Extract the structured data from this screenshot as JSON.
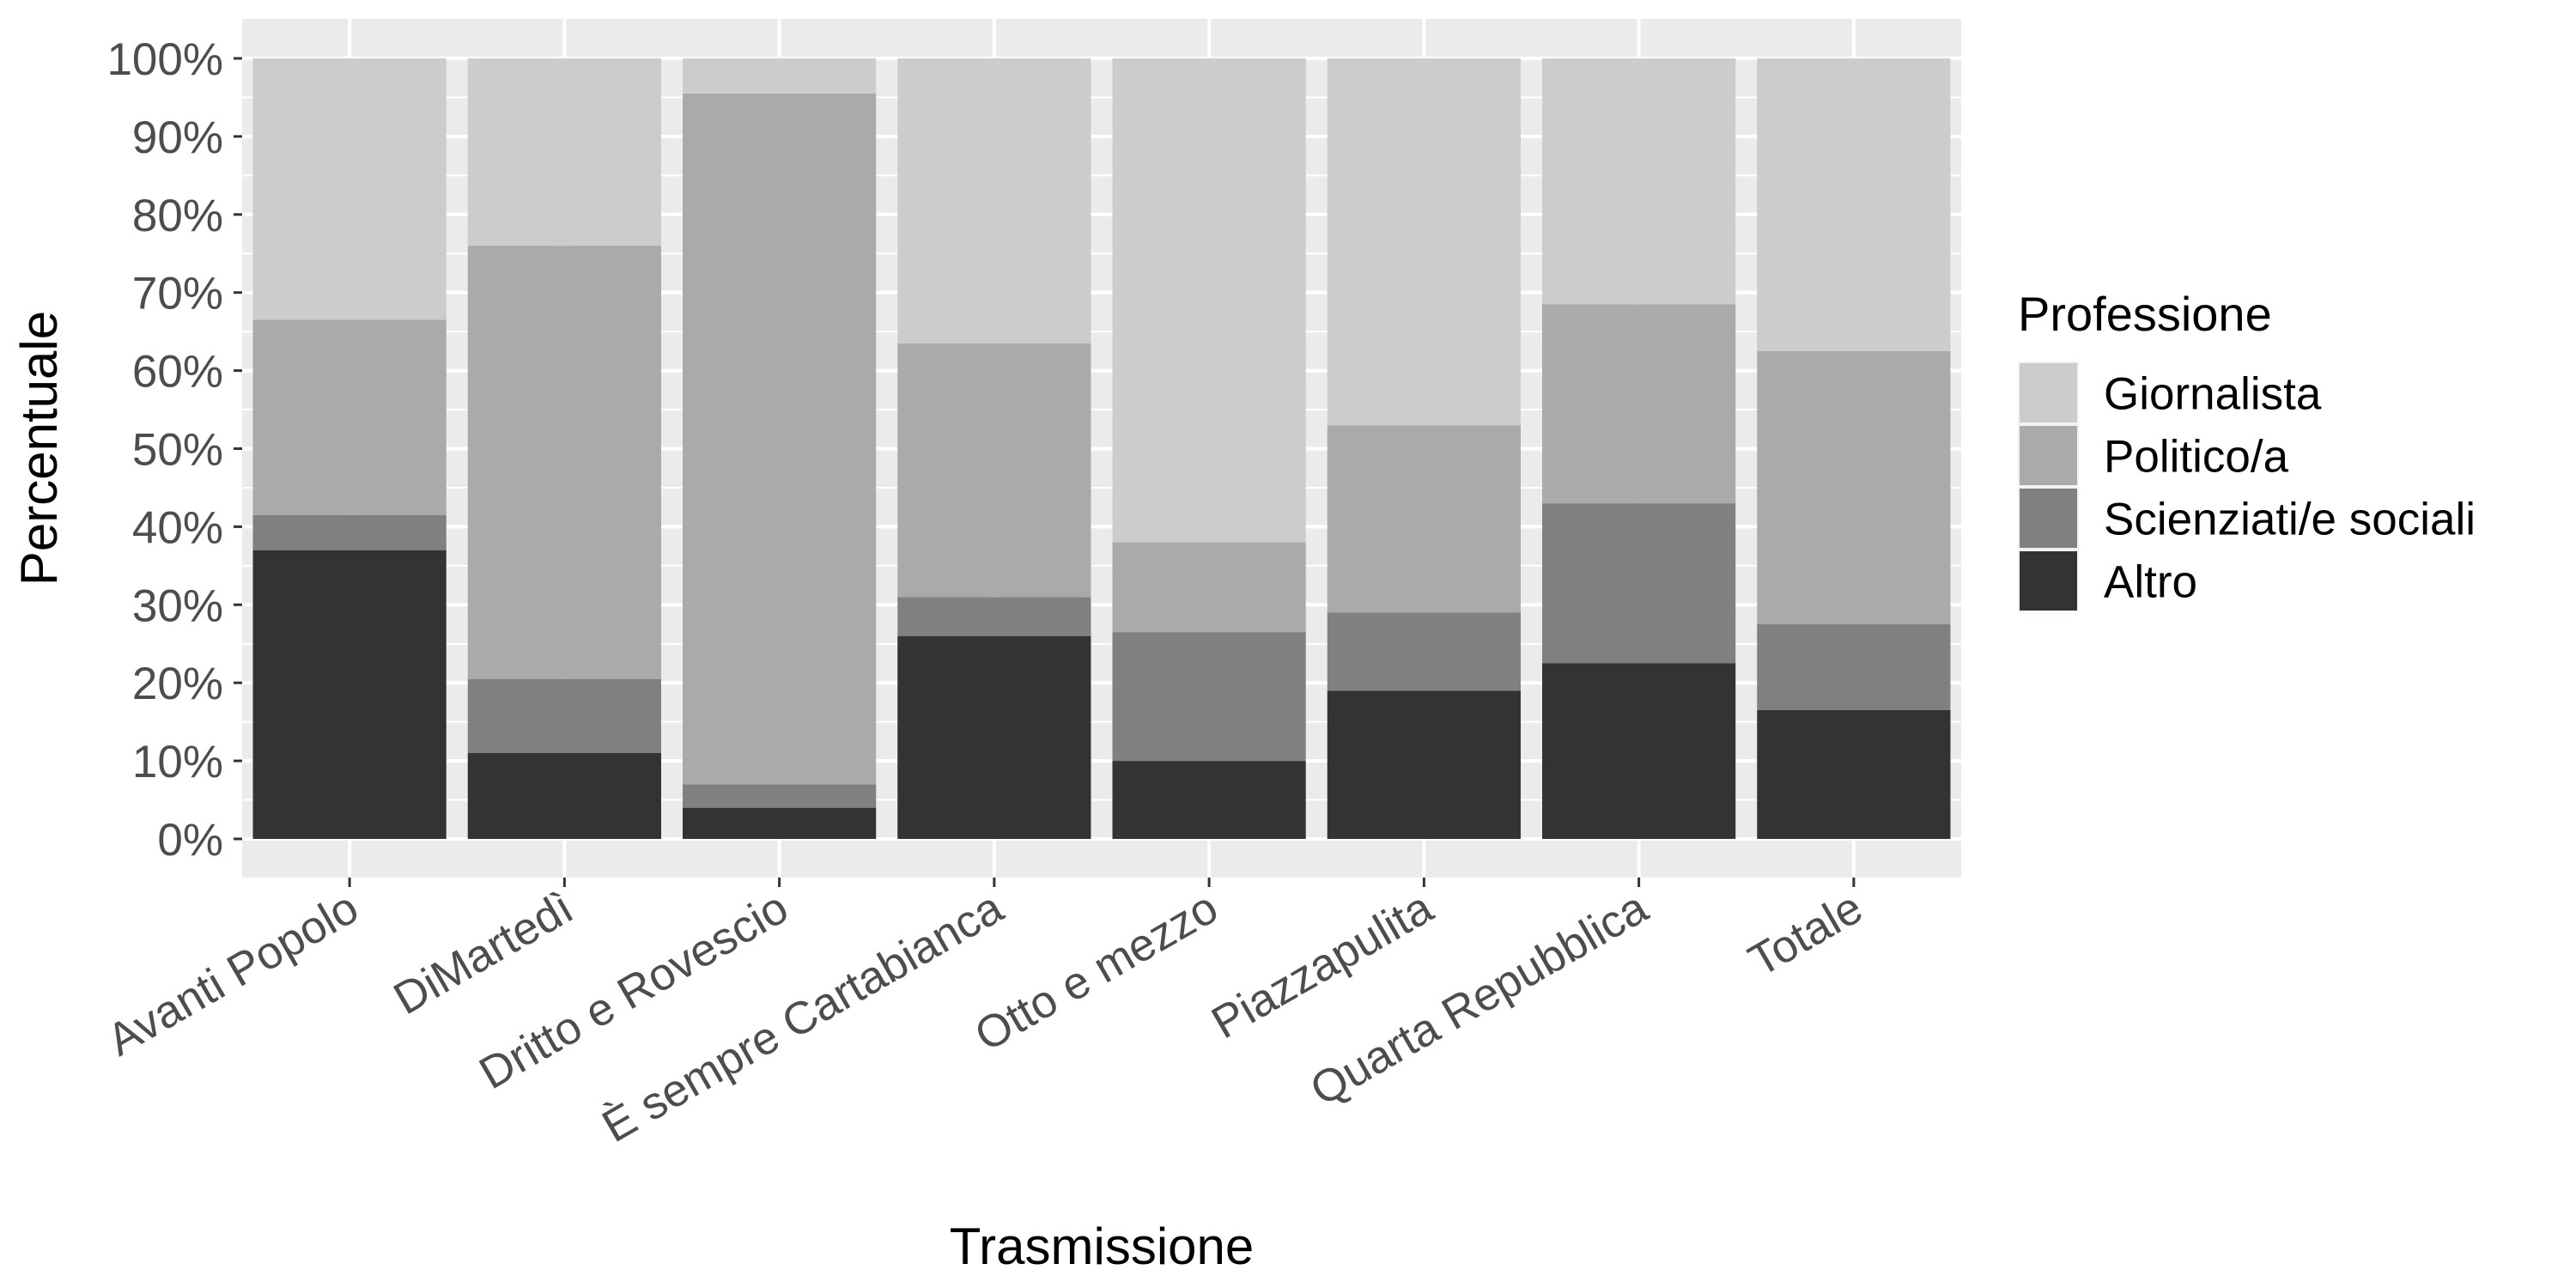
{
  "chart_data": {
    "type": "bar",
    "stacked": true,
    "percent": true,
    "categories": [
      "Avanti Popolo",
      "DiMartedì",
      "Dritto e Rovescio",
      "È sempre Cartabianca",
      "Otto e mezzo",
      "Piazzapulita",
      "Quarta Repubblica",
      "Totale"
    ],
    "series": [
      {
        "name": "Altro",
        "color": "#333333",
        "values": [
          37,
          11,
          4,
          26,
          10,
          19,
          22.5,
          16.5
        ]
      },
      {
        "name": "Scienziati/e sociali",
        "color": "#808080",
        "values": [
          4.5,
          9.5,
          3,
          5,
          16.5,
          10,
          20.5,
          11
        ]
      },
      {
        "name": "Politico/a",
        "color": "#aaaaaa",
        "values": [
          25,
          55.5,
          88.5,
          32.5,
          11.5,
          24,
          25.5,
          35
        ]
      },
      {
        "name": "Giornalista",
        "color": "#cccccc",
        "values": [
          33.5,
          24,
          4.5,
          36.5,
          62,
          47,
          31.5,
          37.5
        ]
      }
    ],
    "xlabel": "Trasmissione",
    "ylabel": "Percentuale",
    "ylim": [
      0,
      100
    ],
    "yticks": [
      "0%",
      "10%",
      "20%",
      "30%",
      "40%",
      "50%",
      "60%",
      "70%",
      "80%",
      "90%",
      "100%"
    ],
    "grid": true,
    "panel_background": "#ebebeb",
    "legend": {
      "title": "Professione",
      "position": "right",
      "order": [
        "Giornalista",
        "Politico/a",
        "Scienziati/e sociali",
        "Altro"
      ]
    }
  }
}
